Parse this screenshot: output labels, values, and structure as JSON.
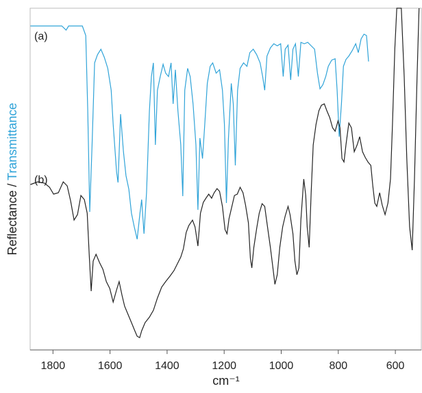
{
  "chart_data": {
    "type": "line",
    "x_label": "cm⁻¹",
    "y_label": [
      "Reflectance / ",
      "Transmittance"
    ],
    "y_label_colors": [
      "#222222",
      "#2fa3d8"
    ],
    "xlim": [
      1880,
      509
    ],
    "ylim": [
      0,
      500
    ],
    "xticks": [
      1800,
      1600,
      1400,
      1200,
      1000,
      800,
      600
    ],
    "series": [
      {
        "name": "(a)",
        "color": "#2fa3d8",
        "x": [
          1879,
          1769,
          1754,
          1745,
          1697,
          1685,
          1678,
          1671,
          1663,
          1654,
          1644,
          1632,
          1620,
          1608,
          1596,
          1589,
          1577,
          1572,
          1563,
          1553,
          1544,
          1534,
          1525,
          1515,
          1505,
          1495,
          1489,
          1481,
          1472,
          1462,
          1455,
          1448,
          1441,
          1434,
          1424,
          1414,
          1405,
          1395,
          1386,
          1379,
          1371,
          1362,
          1352,
          1345,
          1338,
          1328,
          1319,
          1309,
          1299,
          1292,
          1285,
          1276,
          1268,
          1259,
          1249,
          1240,
          1228,
          1216,
          1206,
          1199,
          1192,
          1185,
          1175,
          1168,
          1161,
          1153,
          1144,
          1132,
          1120,
          1110,
          1098,
          1086,
          1074,
          1065,
          1058,
          1050,
          1038,
          1026,
          1014,
          1002,
          993,
          986,
          976,
          967,
          959,
          950,
          940,
          931,
          919,
          907,
          895,
          883,
          873,
          864,
          854,
          844,
          835,
          823,
          811,
          804,
          797,
          789,
          782,
          773,
          763,
          751,
          739,
          730,
          720,
          710,
          701,
          694
        ],
        "values": [
          474,
          474,
          468,
          474,
          474,
          460,
          350,
          202,
          300,
          420,
          432,
          440,
          428,
          412,
          380,
          330,
          260,
          245,
          345,
          290,
          255,
          235,
          200,
          180,
          162,
          200,
          220,
          170,
          230,
          350,
          400,
          420,
          300,
          380,
          400,
          418,
          405,
          400,
          420,
          360,
          410,
          350,
          300,
          225,
          380,
          412,
          400,
          360,
          300,
          205,
          310,
          280,
          330,
          390,
          415,
          420,
          405,
          410,
          380,
          330,
          215,
          310,
          390,
          360,
          270,
          380,
          412,
          420,
          415,
          435,
          440,
          432,
          420,
          400,
          380,
          430,
          442,
          448,
          445,
          448,
          400,
          440,
          446,
          395,
          440,
          448,
          400,
          450,
          448,
          450,
          445,
          440,
          405,
          382,
          388,
          400,
          415,
          424,
          426,
          380,
          312,
          360,
          415,
          425,
          430,
          438,
          448,
          435,
          455,
          462,
          460,
          422
        ]
      },
      {
        "name": "(b)",
        "color": "#222222",
        "x": [
          1879,
          1853,
          1829,
          1812,
          1798,
          1781,
          1764,
          1750,
          1738,
          1726,
          1714,
          1702,
          1690,
          1680,
          1673,
          1666,
          1659,
          1649,
          1637,
          1625,
          1613,
          1601,
          1589,
          1577,
          1568,
          1558,
          1549,
          1537,
          1525,
          1513,
          1505,
          1496,
          1489,
          1477,
          1462,
          1448,
          1434,
          1419,
          1405,
          1390,
          1376,
          1364,
          1352,
          1343,
          1333,
          1324,
          1311,
          1302,
          1292,
          1283,
          1273,
          1264,
          1254,
          1244,
          1235,
          1225,
          1216,
          1206,
          1197,
          1190,
          1183,
          1173,
          1164,
          1154,
          1144,
          1134,
          1125,
          1115,
          1108,
          1103,
          1096,
          1086,
          1077,
          1067,
          1058,
          1048,
          1038,
          1029,
          1022,
          1014,
          1005,
          995,
          986,
          976,
          969,
          959,
          952,
          945,
          938,
          931,
          921,
          914,
          909,
          902,
          895,
          888,
          878,
          868,
          859,
          849,
          840,
          830,
          820,
          811,
          801,
          794,
          787,
          780,
          773,
          763,
          754,
          744,
          734,
          725,
          715,
          706,
          696,
          686,
          679,
          672,
          665,
          655,
          646,
          636,
          626,
          617,
          610,
          602,
          595,
          579,
          569,
          560,
          550,
          541,
          533,
          524,
          517
        ],
        "values": [
          242,
          246,
          244,
          238,
          228,
          230,
          246,
          240,
          218,
          190,
          198,
          226,
          220,
          200,
          140,
          86,
          130,
          140,
          128,
          118,
          100,
          90,
          70,
          88,
          100,
          80,
          64,
          52,
          40,
          28,
          20,
          18,
          28,
          40,
          48,
          58,
          76,
          92,
          100,
          108,
          116,
          126,
          136,
          148,
          172,
          182,
          190,
          180,
          152,
          200,
          216,
          222,
          228,
          222,
          230,
          236,
          232,
          210,
          176,
          170,
          192,
          210,
          226,
          228,
          238,
          230,
          212,
          186,
          134,
          120,
          150,
          178,
          200,
          214,
          210,
          180,
          150,
          120,
          96,
          110,
          150,
          180,
          196,
          210,
          198,
          170,
          130,
          110,
          120,
          190,
          250,
          226,
          180,
          150,
          230,
          300,
          330,
          350,
          358,
          360,
          350,
          340,
          325,
          320,
          335,
          325,
          280,
          275,
          300,
          332,
          325,
          290,
          300,
          312,
          290,
          282,
          275,
          270,
          240,
          215,
          210,
          230,
          212,
          198,
          215,
          250,
          330,
          440,
          500,
          500,
          400,
          280,
          180,
          146,
          250,
          400,
          500
        ]
      }
    ]
  }
}
